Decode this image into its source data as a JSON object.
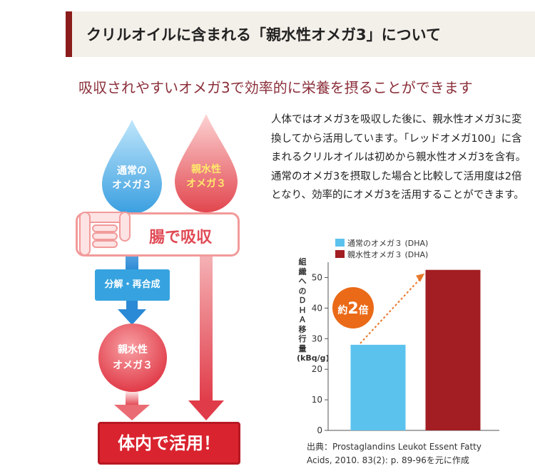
{
  "heading": "クリルオイルに含まれる「親水性オメガ3」について",
  "subheading": "吸収されやすいオメガ3で効率的に栄養を摂ることができます",
  "description": "人体ではオメガ3を吸収した後に、親水性オメガ3に変換してから活用しています。「レッドオメガ100」に含まれるクリルオイルは初めから親水性オメガ3を含有。通常のオメガ3を摂取した場合と比較して活用度は2倍となり、効率的にオメガ3を活用することができます。",
  "diagram": {
    "normal_omega_line1": "通常の",
    "normal_omega_line2": "オメガ３",
    "hydro_omega_line1": "親水性",
    "hydro_omega_line2": "オメガ３",
    "intestine_label": "腸で吸収",
    "process_label": "分解・再合成",
    "result_line1": "親水性",
    "result_line2": "オメガ３",
    "use_label": "体内で活用！",
    "colors": {
      "blue": "#36a3e0",
      "red": "#d9232e",
      "pink": "#f29a9a"
    }
  },
  "chart_data": {
    "type": "bar",
    "categories": [
      "通常のオメガ３ (DHA)",
      "親水性オメガ３ (DHA)"
    ],
    "values": [
      28,
      52.5
    ],
    "colors": [
      "#5bc2ee",
      "#a21e23"
    ],
    "ylabel": "組織へのＤＨＡ移行量(kBq/g)",
    "yticks": [
      0,
      10,
      20,
      30,
      40,
      50
    ],
    "ylim": [
      0,
      55
    ],
    "legend": [
      "通常のオメガ３ (DHA)",
      "親水性オメガ３ (DHA)"
    ],
    "annotation_prefix": "約",
    "annotation_value": "2",
    "annotation_suffix": "倍",
    "source_line1": "出典：Prostaglandins Leukot Essent Fatty",
    "source_line2": "Acids, 2010. 83(2): p. 89-96を元に作成"
  }
}
